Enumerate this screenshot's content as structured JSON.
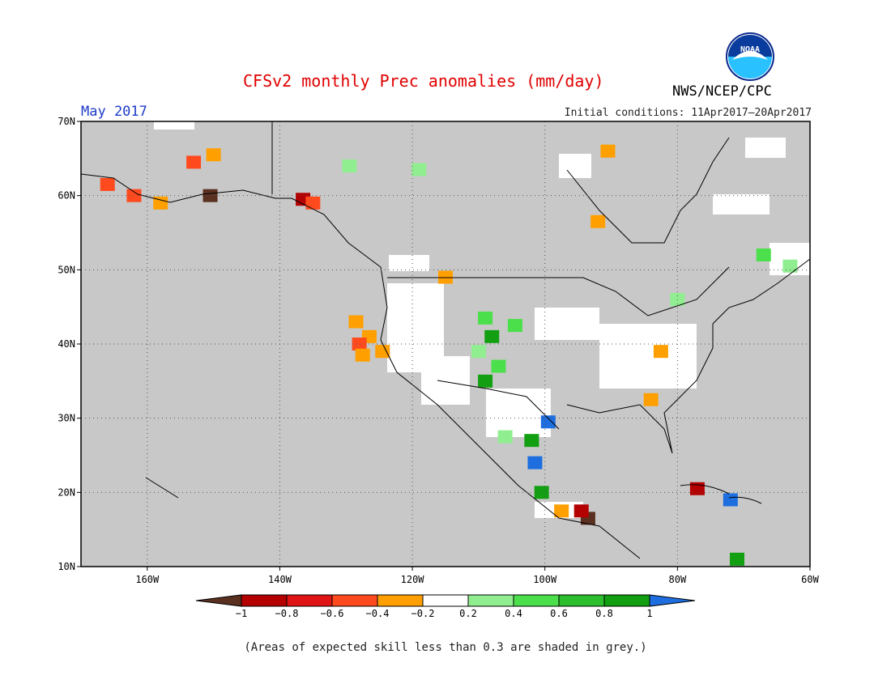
{
  "header": {
    "title": "CFSv2 monthly Prec anomalies (mm/day)",
    "month": "May 2017",
    "initial_conditions": "Initial conditions: 11Apr2017–20Apr2017",
    "agency": "NWS/NCEP/CPC",
    "logo_text": "NOAA"
  },
  "map": {
    "lon_range": [
      -170,
      -60
    ],
    "lat_range": [
      10,
      70
    ],
    "lon_ticks": [
      {
        "value": -160,
        "label": "160W"
      },
      {
        "value": -140,
        "label": "140W"
      },
      {
        "value": -120,
        "label": "120W"
      },
      {
        "value": -100,
        "label": "100W"
      },
      {
        "value": -80,
        "label": "80W"
      },
      {
        "value": -60,
        "label": "60W"
      }
    ],
    "lat_ticks": [
      {
        "value": 10,
        "label": "10N"
      },
      {
        "value": 20,
        "label": "20N"
      },
      {
        "value": 30,
        "label": "30N"
      },
      {
        "value": 40,
        "label": "40N"
      },
      {
        "value": 50,
        "label": "50N"
      },
      {
        "value": 60,
        "label": "60N"
      },
      {
        "value": 70,
        "label": "70N"
      }
    ],
    "grid": "dotted",
    "background_color": "#c8c8c8",
    "land_low_skill_color": "#c8c8c8"
  },
  "anomaly_regions": [
    {
      "lon": -128.5,
      "lat": 43.0,
      "color": "#ff9f00"
    },
    {
      "lon": -126.5,
      "lat": 41.0,
      "color": "#ff9f00"
    },
    {
      "lon": -128.0,
      "lat": 40.0,
      "color": "#ff4a1e"
    },
    {
      "lon": -124.5,
      "lat": 39.0,
      "color": "#ff9f00"
    },
    {
      "lon": -127.5,
      "lat": 38.5,
      "color": "#ff9f00"
    },
    {
      "lon": -109.0,
      "lat": 35.0,
      "color": "#12a012"
    },
    {
      "lon": -107.0,
      "lat": 37.0,
      "color": "#4be04b"
    },
    {
      "lon": -109.0,
      "lat": 43.5,
      "color": "#4be04b"
    },
    {
      "lon": -108.0,
      "lat": 41.0,
      "color": "#12a012"
    },
    {
      "lon": -110.0,
      "lat": 39.0,
      "color": "#90ee90"
    },
    {
      "lon": -104.5,
      "lat": 42.5,
      "color": "#4be04b"
    },
    {
      "lon": -102.0,
      "lat": 27.0,
      "color": "#12a012"
    },
    {
      "lon": -101.5,
      "lat": 24.0,
      "color": "#1e6ee0"
    },
    {
      "lon": -99.5,
      "lat": 29.5,
      "color": "#1e6ee0"
    },
    {
      "lon": -100.5,
      "lat": 20.0,
      "color": "#12a012"
    },
    {
      "lon": -106.0,
      "lat": 27.5,
      "color": "#90ee90"
    },
    {
      "lon": -84.0,
      "lat": 32.5,
      "color": "#ff9f00"
    },
    {
      "lon": -82.5,
      "lat": 39.0,
      "color": "#ff9f00"
    },
    {
      "lon": -93.5,
      "lat": 16.5,
      "color": "#5a3020"
    },
    {
      "lon": -94.5,
      "lat": 17.5,
      "color": "#b40000"
    },
    {
      "lon": -97.5,
      "lat": 17.5,
      "color": "#ff9f00"
    },
    {
      "lon": -72.0,
      "lat": 19.0,
      "color": "#1e6ee0"
    },
    {
      "lon": -77.0,
      "lat": 20.5,
      "color": "#b40000"
    },
    {
      "lon": -166.0,
      "lat": 61.5,
      "color": "#ff4a1e"
    },
    {
      "lon": -162.0,
      "lat": 60.0,
      "color": "#ff4a1e"
    },
    {
      "lon": -158.0,
      "lat": 59.0,
      "color": "#ff9f00"
    },
    {
      "lon": -153.0,
      "lat": 64.5,
      "color": "#ff4a1e"
    },
    {
      "lon": -150.0,
      "lat": 65.5,
      "color": "#ff9f00"
    },
    {
      "lon": -150.5,
      "lat": 60.0,
      "color": "#5a3020"
    },
    {
      "lon": -136.5,
      "lat": 59.5,
      "color": "#b40000"
    },
    {
      "lon": -135.0,
      "lat": 59.0,
      "color": "#ff4a1e"
    },
    {
      "lon": -90.5,
      "lat": 66.0,
      "color": "#ff9f00"
    },
    {
      "lon": -92.0,
      "lat": 56.5,
      "color": "#ff9f00"
    },
    {
      "lon": -67.0,
      "lat": 52.0,
      "color": "#4be04b"
    },
    {
      "lon": -63.0,
      "lat": 50.5,
      "color": "#90ee90"
    },
    {
      "lon": -129.5,
      "lat": 64.0,
      "color": "#90ee90"
    },
    {
      "lon": -119.0,
      "lat": 63.5,
      "color": "#90ee90"
    },
    {
      "lon": -80.0,
      "lat": 46.0,
      "color": "#90ee90"
    },
    {
      "lon": -115.0,
      "lat": 49.0,
      "color": "#ff9f00"
    },
    {
      "lon": -71.0,
      "lat": 11.0,
      "color": "#12a012"
    }
  ],
  "colorbar": {
    "colors": [
      "#5a3020",
      "#b40000",
      "#e01414",
      "#ff4a1e",
      "#ff9f00",
      "#ffffff",
      "#90ee90",
      "#4be04b",
      "#2cbe2c",
      "#12a012",
      "#1e6ee0"
    ],
    "labels": [
      "−1",
      "−0.8",
      "−0.6",
      "−0.4",
      "−0.2",
      "0.2",
      "0.4",
      "0.6",
      "0.8",
      "1"
    ]
  },
  "footer": {
    "caption": "(Areas of expected skill less than 0.3 are shaded in grey.)"
  }
}
